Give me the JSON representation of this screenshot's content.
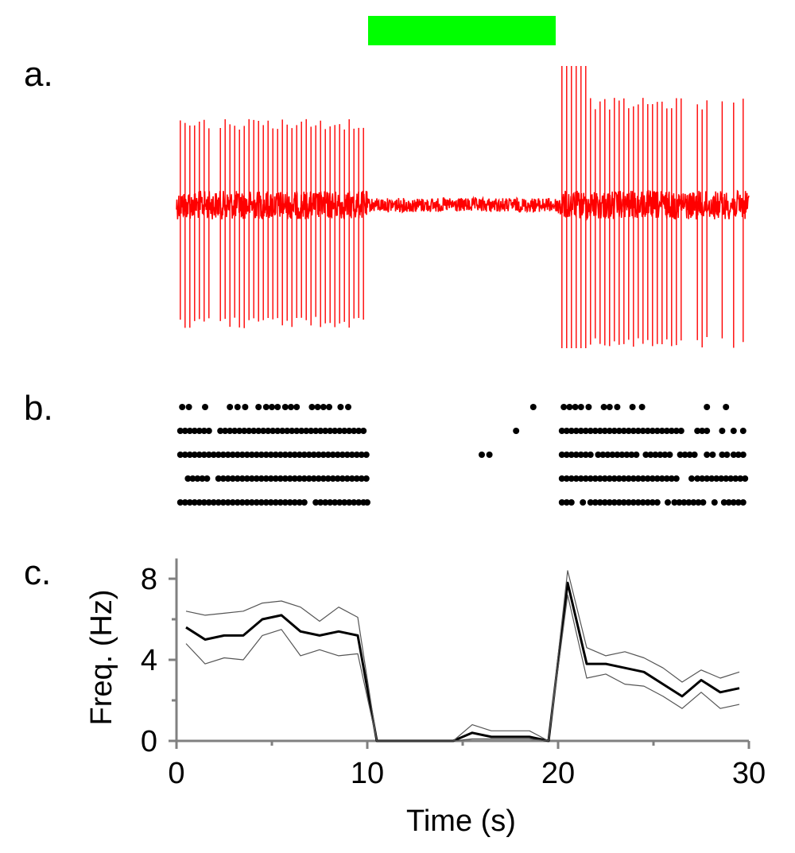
{
  "panels": {
    "a": "a.",
    "b": "b.",
    "c": "c."
  },
  "colors": {
    "stimulus_bar": "#00ff00",
    "trace": "#ff0000",
    "raster": "#000000",
    "mean_line": "#000000",
    "band_line": "#555555",
    "axis": "#808080"
  },
  "stimulus": {
    "start_s": 10,
    "end_s": 20
  },
  "chart_data": [
    {
      "type": "line",
      "panel": "a",
      "description_role": "extracellular voltage trace",
      "x_range_s": [
        0,
        30
      ],
      "quiet_interval_s": [
        10,
        20
      ]
    },
    {
      "type": "scatter",
      "panel": "b",
      "trials": [
        {
          "spike_times_s": [
            0.3,
            0.65,
            1.5,
            2.8,
            3.2,
            3.6,
            4.3,
            4.7,
            5.0,
            5.3,
            5.7,
            6.0,
            6.3,
            7.1,
            7.4,
            7.7,
            8.0,
            8.6,
            9.0,
            18.7,
            20.3,
            20.6,
            20.9,
            21.2,
            21.6,
            22.4,
            22.7,
            23.1,
            23.9,
            24.4,
            27.8,
            28.8
          ]
        },
        {
          "spike_times_s": [
            0.2,
            0.45,
            0.7,
            0.95,
            1.2,
            1.45,
            1.7,
            2.3,
            2.55,
            2.8,
            3.05,
            3.3,
            3.55,
            3.8,
            4.05,
            4.3,
            4.55,
            4.8,
            5.05,
            5.3,
            5.55,
            5.8,
            6.05,
            6.3,
            6.55,
            6.8,
            7.05,
            7.3,
            7.55,
            7.8,
            8.05,
            8.3,
            8.55,
            8.8,
            9.05,
            9.3,
            9.55,
            9.8,
            17.8,
            20.2,
            20.45,
            20.7,
            20.95,
            21.2,
            21.45,
            21.7,
            21.95,
            22.2,
            22.45,
            22.7,
            22.95,
            23.2,
            23.45,
            23.7,
            23.95,
            24.2,
            24.45,
            24.7,
            24.95,
            25.2,
            25.45,
            25.7,
            25.95,
            26.2,
            26.45,
            27.3,
            27.55,
            27.8,
            28.6,
            29.2,
            29.7
          ]
        },
        {
          "spike_times_s": [
            0.2,
            0.45,
            0.7,
            0.95,
            1.2,
            1.45,
            1.7,
            1.95,
            2.2,
            2.45,
            2.7,
            2.95,
            3.2,
            3.45,
            3.7,
            3.95,
            4.2,
            4.45,
            4.7,
            4.95,
            5.2,
            5.45,
            5.7,
            5.95,
            6.2,
            6.45,
            6.7,
            6.95,
            7.2,
            7.45,
            7.7,
            7.95,
            8.2,
            8.45,
            8.7,
            8.95,
            9.2,
            9.45,
            9.7,
            9.95,
            16.0,
            16.4,
            20.2,
            20.45,
            20.7,
            20.95,
            21.2,
            21.45,
            21.7,
            22.1,
            22.35,
            22.6,
            22.85,
            23.1,
            23.35,
            23.6,
            23.85,
            24.1,
            24.6,
            24.85,
            25.1,
            25.35,
            25.6,
            25.85,
            26.4,
            26.65,
            26.9,
            27.15,
            27.8,
            28.1,
            28.6,
            28.85,
            29.2,
            29.45,
            29.7
          ]
        },
        {
          "spike_times_s": [
            0.6,
            0.85,
            1.1,
            1.35,
            1.6,
            2.2,
            2.45,
            2.7,
            2.95,
            3.2,
            3.45,
            3.7,
            3.95,
            4.2,
            4.45,
            4.7,
            4.95,
            5.2,
            5.45,
            5.7,
            5.95,
            6.2,
            6.45,
            6.7,
            6.95,
            7.2,
            7.45,
            7.7,
            7.95,
            8.2,
            8.45,
            8.7,
            8.95,
            9.2,
            9.45,
            9.7,
            9.95,
            20.2,
            20.45,
            20.7,
            20.95,
            21.2,
            21.45,
            21.7,
            21.95,
            22.2,
            22.45,
            22.7,
            22.95,
            23.2,
            23.45,
            23.7,
            23.95,
            24.2,
            24.45,
            24.7,
            24.95,
            25.2,
            25.45,
            25.7,
            25.95,
            26.2,
            27.0,
            27.3,
            27.55,
            27.8,
            28.05,
            28.3,
            28.55,
            28.8,
            29.05,
            29.3,
            29.55,
            29.8
          ]
        },
        {
          "spike_times_s": [
            0.2,
            0.45,
            0.7,
            0.95,
            1.2,
            1.45,
            1.7,
            1.95,
            2.2,
            2.45,
            2.7,
            2.95,
            3.2,
            3.45,
            3.7,
            3.95,
            4.2,
            4.45,
            4.7,
            4.95,
            5.2,
            5.45,
            5.7,
            5.95,
            6.2,
            6.45,
            6.7,
            7.3,
            7.55,
            7.8,
            8.05,
            8.3,
            8.55,
            8.8,
            9.05,
            9.3,
            9.55,
            9.8,
            10.0,
            20.2,
            20.45,
            20.7,
            21.3,
            21.7,
            21.95,
            22.2,
            22.45,
            22.7,
            22.95,
            23.2,
            23.45,
            23.7,
            23.95,
            24.2,
            24.45,
            24.7,
            24.95,
            25.2,
            25.75,
            26.1,
            26.35,
            26.6,
            26.85,
            27.1,
            27.35,
            27.6,
            28.2,
            28.7,
            28.95,
            29.2,
            29.45,
            29.7
          ]
        }
      ]
    },
    {
      "type": "line",
      "panel": "c",
      "xlabel": "Time (s)",
      "ylabel": "Freq. (Hz)",
      "xlim": [
        0,
        30
      ],
      "ylim": [
        0,
        9
      ],
      "xticks": [
        "0",
        "10",
        "20",
        "30"
      ],
      "yticks": [
        "0",
        "4",
        "8"
      ],
      "grid": false,
      "x": [
        0.5,
        1.5,
        2.5,
        3.5,
        4.5,
        5.5,
        6.5,
        7.5,
        8.5,
        9.5,
        10.5,
        11.5,
        12.5,
        13.5,
        14.5,
        15.5,
        16.5,
        17.5,
        18.5,
        19.5,
        20.5,
        21.5,
        22.5,
        23.5,
        24.5,
        25.5,
        26.5,
        27.5,
        28.5,
        29.5
      ],
      "series": [
        {
          "role": "mean",
          "values": [
            5.6,
            5.0,
            5.2,
            5.2,
            6.0,
            6.2,
            5.4,
            5.2,
            5.4,
            5.2,
            0.0,
            0.0,
            0.0,
            0.0,
            0.0,
            0.4,
            0.2,
            0.2,
            0.2,
            0.0,
            7.8,
            3.8,
            3.8,
            3.6,
            3.4,
            2.8,
            2.2,
            3.0,
            2.4,
            2.6
          ]
        },
        {
          "role": "upper",
          "values": [
            6.4,
            6.2,
            6.3,
            6.4,
            6.8,
            6.9,
            6.6,
            5.9,
            6.6,
            6.1,
            0.0,
            0.0,
            0.0,
            0.0,
            0.0,
            0.8,
            0.5,
            0.5,
            0.5,
            0.0,
            8.4,
            4.6,
            4.2,
            4.4,
            4.1,
            3.6,
            2.9,
            3.5,
            3.1,
            3.4
          ]
        },
        {
          "role": "lower",
          "values": [
            4.8,
            3.8,
            4.1,
            4.0,
            5.2,
            5.5,
            4.2,
            4.5,
            4.2,
            4.3,
            0.0,
            0.0,
            0.0,
            0.0,
            0.0,
            0.1,
            0.1,
            0.1,
            0.1,
            0.0,
            7.2,
            3.1,
            3.3,
            2.8,
            2.7,
            2.2,
            1.6,
            2.4,
            1.6,
            1.8
          ]
        }
      ]
    }
  ]
}
